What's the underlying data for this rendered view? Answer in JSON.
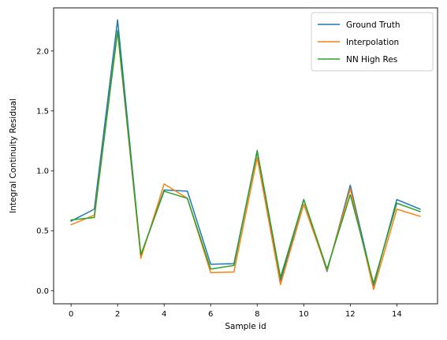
{
  "chart_data": {
    "type": "line",
    "title": "",
    "xlabel": "Sample id",
    "ylabel": "Integral Continuity Residual",
    "xlim": [
      -0.75,
      15.75
    ],
    "ylim": [
      -0.11,
      2.36
    ],
    "x_ticks": [
      0,
      2,
      4,
      6,
      8,
      10,
      12,
      14
    ],
    "x_tick_labels": [
      "0",
      "2",
      "4",
      "6",
      "8",
      "10",
      "12",
      "14"
    ],
    "y_ticks": [
      0.0,
      0.5,
      1.0,
      1.5,
      2.0
    ],
    "y_tick_labels": [
      "0.0",
      "0.5",
      "1.0",
      "1.5",
      "2.0"
    ],
    "grid": false,
    "legend_position": "top-right",
    "x": [
      0,
      1,
      2,
      3,
      4,
      5,
      6,
      7,
      8,
      9,
      10,
      11,
      12,
      13,
      14,
      15
    ],
    "series": [
      {
        "name": "Ground Truth",
        "color": "#1f77b4",
        "values": [
          0.58,
          0.68,
          2.26,
          0.29,
          0.84,
          0.83,
          0.22,
          0.225,
          1.16,
          0.08,
          0.76,
          0.16,
          0.88,
          0.04,
          0.76,
          0.68
        ]
      },
      {
        "name": "Interpolation",
        "color": "#ff7f0e",
        "values": [
          0.55,
          0.63,
          2.16,
          0.27,
          0.89,
          0.77,
          0.15,
          0.155,
          1.11,
          0.05,
          0.72,
          0.17,
          0.85,
          0.01,
          0.68,
          0.62
        ]
      },
      {
        "name": "NN High Res",
        "color": "#2ca02c",
        "values": [
          0.59,
          0.61,
          2.17,
          0.3,
          0.83,
          0.77,
          0.18,
          0.21,
          1.17,
          0.11,
          0.76,
          0.18,
          0.8,
          0.06,
          0.73,
          0.66
        ]
      }
    ]
  }
}
